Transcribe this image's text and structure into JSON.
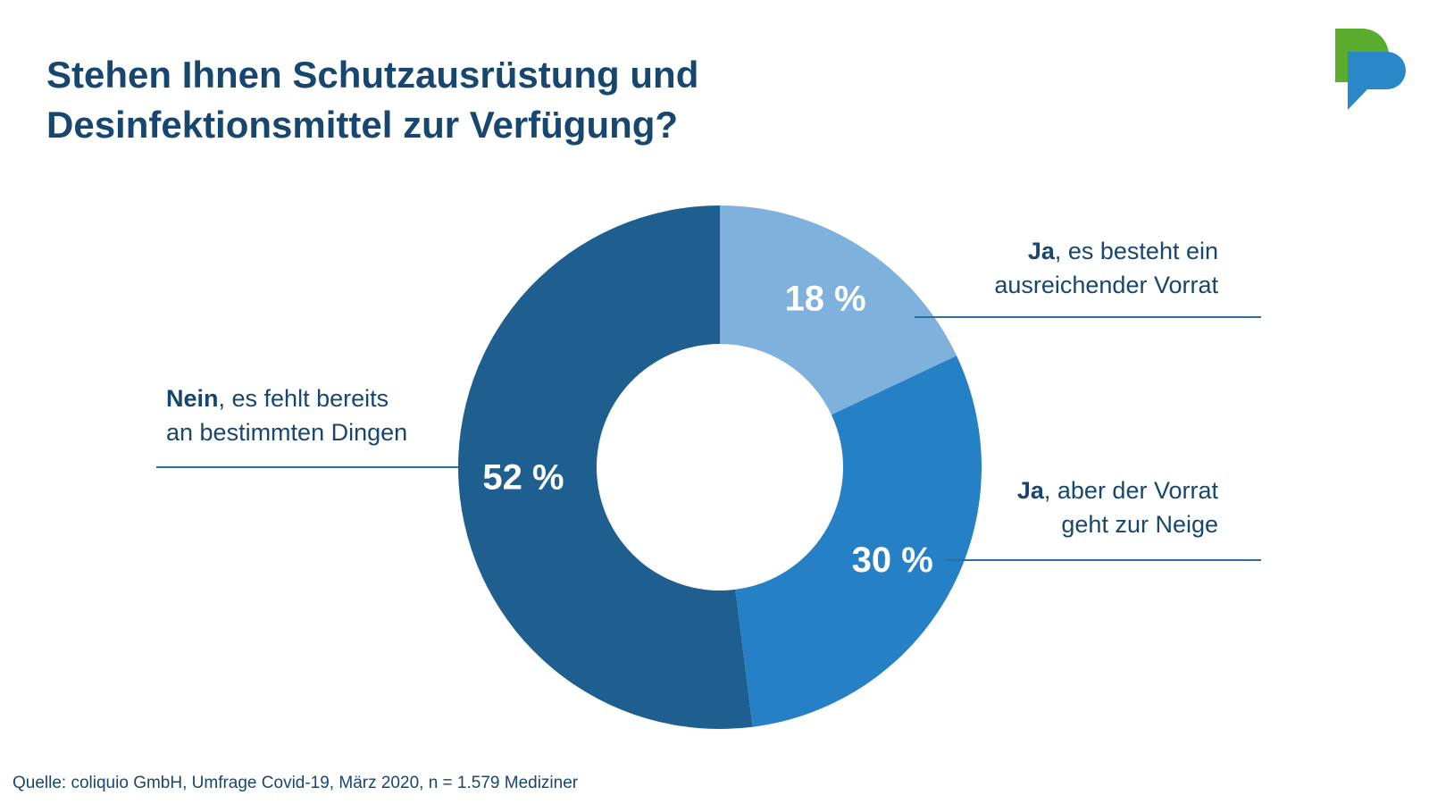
{
  "title": {
    "line1": "Stehen Ihnen Schutzausrüstung und",
    "line2": "Desinfektionsmittel zur Verfügung?"
  },
  "logo": {
    "icon": "speech-bubbles-logo-icon",
    "colors": [
      "#5aab2e",
      "#2a87c8"
    ]
  },
  "chart_data": {
    "type": "pie",
    "donut": true,
    "title": "Stehen Ihnen Schutzausrüstung und Desinfektionsmittel zur Verfügung?",
    "categories": [
      "Ja, es besteht ein ausreichender Vorrat",
      "Ja, aber der Vorrat geht zur Neige",
      "Nein, es fehlt bereits an bestimmten Dingen"
    ],
    "values": [
      18,
      30,
      52
    ],
    "unit": "%",
    "data_labels": [
      "18 %",
      "30 %",
      "52 %"
    ],
    "colors": [
      "#7eb1db",
      "#2680c5",
      "#1f5f8f"
    ]
  },
  "legend": {
    "a": {
      "bold": "Ja",
      "rest": ", es besteht ein",
      "line2": "ausreichender Vorrat"
    },
    "b": {
      "bold": "Ja",
      "rest": ", aber der Vorrat",
      "line2": "geht zur Neige"
    },
    "c": {
      "bold": "Nein",
      "rest": ", es fehlt bereits",
      "line2": "an bestimmten Dingen"
    }
  },
  "source": "Quelle: coliquio GmbH, Umfrage Covid-19, März 2020, n = 1.579 Mediziner"
}
